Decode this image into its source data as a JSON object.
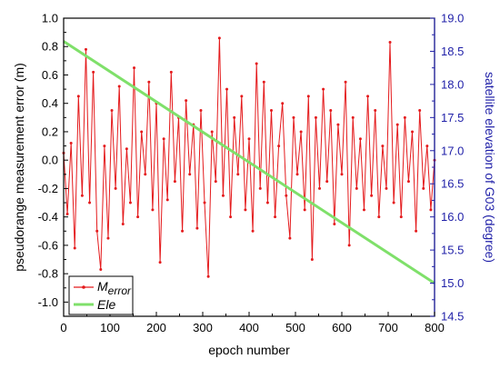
{
  "chart_data": {
    "type": "line",
    "xlabel": "epoch number",
    "ylabel_left": "pseudorange measurement error (m)",
    "ylabel_right": "satellite elevation of G03 (degree)",
    "xlim": [
      0,
      800
    ],
    "ylim_left": [
      -1.1,
      1.0
    ],
    "ylim_right": [
      14.5,
      19.0
    ],
    "x_ticks": [
      0,
      100,
      200,
      300,
      400,
      500,
      600,
      700,
      800
    ],
    "x_tick_labels": [
      "0",
      "100",
      "200",
      "300",
      "400",
      "500",
      "600",
      "700",
      "800"
    ],
    "y_left_ticks": [
      -1.0,
      -0.8,
      -0.6,
      -0.4,
      -0.2,
      0.0,
      0.2,
      0.4,
      0.6,
      0.8,
      1.0
    ],
    "y_left_tick_labels": [
      "-1.0",
      "-0.8",
      "-0.6",
      "-0.4",
      "-0.2",
      "0.0",
      "0.2",
      "0.4",
      "0.6",
      "0.8",
      "1.0"
    ],
    "y_right_ticks": [
      14.5,
      15.0,
      15.5,
      16.0,
      16.5,
      17.0,
      17.5,
      18.0,
      18.5,
      19.0
    ],
    "y_right_tick_labels": [
      "14.5",
      "15.0",
      "15.5",
      "16.0",
      "16.5",
      "17.0",
      "17.5",
      "18.0",
      "18.5",
      "19.0"
    ],
    "grid": false,
    "legend_position": "bottom-left",
    "series": [
      {
        "name": "Merror",
        "label_main": "M",
        "label_sub": "error",
        "axis": "left",
        "color": "#e41a1c",
        "marker": "dot",
        "x": [
          0,
          8,
          16,
          24,
          32,
          40,
          48,
          56,
          64,
          72,
          80,
          88,
          96,
          104,
          112,
          120,
          128,
          136,
          144,
          152,
          160,
          168,
          176,
          184,
          192,
          200,
          208,
          216,
          224,
          232,
          240,
          248,
          256,
          264,
          272,
          280,
          288,
          296,
          304,
          312,
          320,
          328,
          336,
          344,
          352,
          360,
          368,
          376,
          384,
          392,
          400,
          408,
          416,
          424,
          432,
          440,
          448,
          456,
          464,
          472,
          480,
          488,
          496,
          504,
          512,
          520,
          528,
          536,
          544,
          552,
          560,
          568,
          576,
          584,
          592,
          600,
          608,
          616,
          624,
          632,
          640,
          648,
          656,
          664,
          672,
          680,
          688,
          696,
          704,
          712,
          720,
          728,
          736,
          744,
          752,
          760,
          768,
          776,
          784,
          792,
          800
        ],
        "values": [
          0.05,
          -0.38,
          0.12,
          -0.62,
          0.45,
          -0.25,
          0.78,
          -0.3,
          0.62,
          -0.5,
          -0.77,
          0.1,
          -0.55,
          0.35,
          -0.2,
          0.52,
          -0.45,
          0.08,
          -0.3,
          0.65,
          -0.4,
          0.2,
          -0.1,
          0.55,
          -0.35,
          0.4,
          -0.72,
          0.15,
          -0.28,
          0.62,
          -0.15,
          0.3,
          -0.5,
          0.42,
          -0.1,
          0.25,
          -0.48,
          0.35,
          -0.3,
          -0.82,
          0.2,
          -0.15,
          0.86,
          -0.25,
          0.5,
          -0.4,
          0.3,
          -0.1,
          0.45,
          -0.35,
          0.15,
          -0.5,
          0.68,
          -0.2,
          0.55,
          -0.3,
          0.35,
          -0.4,
          0.1,
          0.4,
          -0.25,
          -0.55,
          0.3,
          -0.1,
          0.2,
          -0.35,
          0.45,
          -0.7,
          0.3,
          -0.2,
          0.5,
          -0.15,
          0.35,
          -0.45,
          0.25,
          -0.1,
          0.55,
          -0.6,
          0.3,
          -0.2,
          0.15,
          -0.35,
          0.45,
          -0.25,
          0.35,
          -0.4,
          0.1,
          -0.2,
          0.83,
          -0.3,
          0.25,
          -0.4,
          0.3,
          -0.15,
          0.2,
          -0.5,
          0.35,
          -0.2,
          0.1,
          -0.35,
          0.0
        ]
      },
      {
        "name": "Ele",
        "label_main": "Ele",
        "label_sub": "",
        "axis": "right",
        "color": "#7fe06a",
        "marker": "none",
        "x": [
          0,
          800
        ],
        "values": [
          18.65,
          15.0
        ]
      }
    ]
  }
}
